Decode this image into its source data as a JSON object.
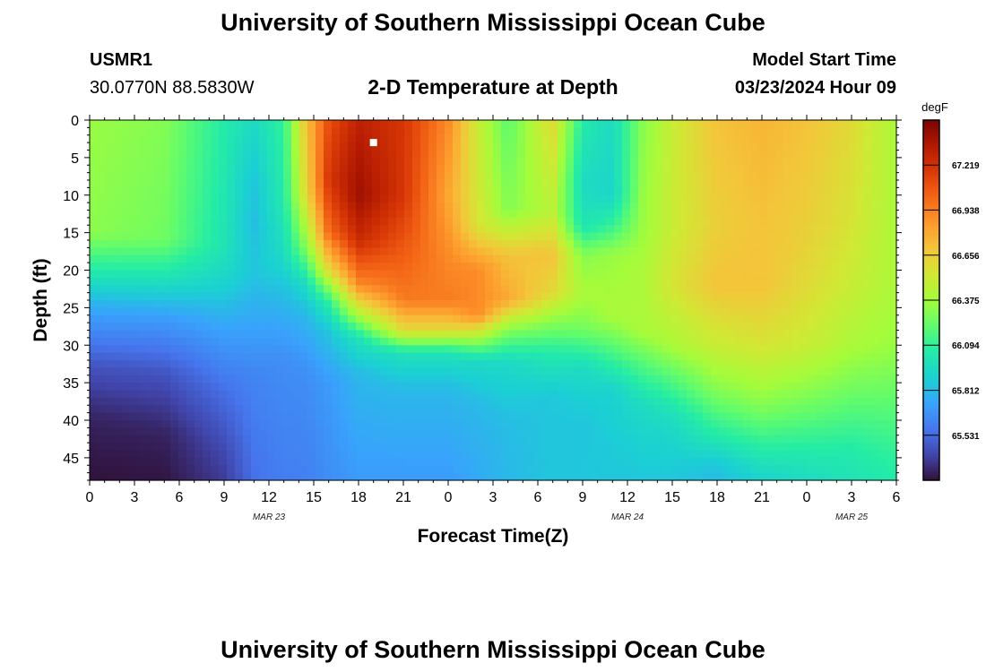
{
  "page": {
    "title": "University of Southern Mississippi Ocean Cube",
    "footer_title": "University of Southern Mississippi Ocean Cube"
  },
  "station": {
    "id": "USMR1",
    "coords": "30.0770N  88.5830W"
  },
  "model": {
    "label": "Model Start Time",
    "time": "03/23/2024 Hour 09"
  },
  "chart_data": {
    "type": "heatmap",
    "title": "2-D Temperature at Depth",
    "xlabel": "Forecast Time(Z)",
    "ylabel": "Depth (ft)",
    "xlim": [
      0,
      54
    ],
    "ylim": [
      48,
      0
    ],
    "x_ticks": [
      {
        "h": 0,
        "label": "0"
      },
      {
        "h": 3,
        "label": "3"
      },
      {
        "h": 6,
        "label": "6"
      },
      {
        "h": 9,
        "label": "9"
      },
      {
        "h": 12,
        "label": "12"
      },
      {
        "h": 15,
        "label": "15"
      },
      {
        "h": 18,
        "label": "18"
      },
      {
        "h": 21,
        "label": "21"
      },
      {
        "h": 24,
        "label": "0"
      },
      {
        "h": 27,
        "label": "3"
      },
      {
        "h": 30,
        "label": "6"
      },
      {
        "h": 33,
        "label": "9"
      },
      {
        "h": 36,
        "label": "12"
      },
      {
        "h": 39,
        "label": "15"
      },
      {
        "h": 42,
        "label": "18"
      },
      {
        "h": 45,
        "label": "21"
      },
      {
        "h": 48,
        "label": "0"
      },
      {
        "h": 51,
        "label": "3"
      },
      {
        "h": 54,
        "label": "6"
      }
    ],
    "date_labels": [
      {
        "h": 12,
        "label": "MAR 23"
      },
      {
        "h": 36,
        "label": "MAR 24"
      },
      {
        "h": 51,
        "label": "MAR 25"
      }
    ],
    "y_ticks": [
      0,
      5,
      10,
      15,
      20,
      25,
      30,
      35,
      40,
      45
    ],
    "colorbar": {
      "unit": "degF",
      "min": 65.25,
      "max": 67.5,
      "ticks": [
        "67.219",
        "66.938",
        "66.656",
        "66.375",
        "66.094",
        "65.812",
        "65.531"
      ]
    },
    "columns": [
      {
        "h": 0,
        "v": [
          [
            0,
            66.35
          ],
          [
            15,
            66.32
          ],
          [
            20,
            66.05
          ],
          [
            25,
            65.75
          ],
          [
            33,
            65.45
          ],
          [
            40,
            65.3
          ],
          [
            48,
            65.25
          ]
        ]
      },
      {
        "h": 5,
        "v": [
          [
            0,
            66.3
          ],
          [
            16,
            66.25
          ],
          [
            21,
            66.0
          ],
          [
            26,
            65.72
          ],
          [
            34,
            65.45
          ],
          [
            42,
            65.3
          ],
          [
            48,
            65.26
          ]
        ]
      },
      {
        "h": 9,
        "v": [
          [
            0,
            66.05
          ],
          [
            17,
            66.0
          ],
          [
            22,
            65.9
          ],
          [
            28,
            65.72
          ],
          [
            36,
            65.55
          ],
          [
            44,
            65.42
          ],
          [
            48,
            65.38
          ]
        ]
      },
      {
        "h": 11,
        "v": [
          [
            0,
            65.95
          ],
          [
            8,
            65.85
          ],
          [
            14,
            65.82
          ],
          [
            20,
            65.85
          ],
          [
            26,
            65.75
          ],
          [
            34,
            65.62
          ],
          [
            48,
            65.55
          ]
        ]
      },
      {
        "h": 13,
        "v": [
          [
            0,
            66.1
          ],
          [
            10,
            66.05
          ],
          [
            18,
            65.95
          ],
          [
            24,
            65.8
          ],
          [
            32,
            65.65
          ],
          [
            48,
            65.6
          ]
        ]
      },
      {
        "h": 14.5,
        "v": [
          [
            0,
            66.7
          ],
          [
            10,
            66.6
          ],
          [
            17,
            66.3
          ],
          [
            22,
            65.95
          ],
          [
            26,
            65.8
          ],
          [
            34,
            65.65
          ],
          [
            48,
            65.6
          ]
        ]
      },
      {
        "h": 16,
        "v": [
          [
            0,
            67.1
          ],
          [
            8,
            67.2
          ],
          [
            15,
            67.0
          ],
          [
            20,
            66.6
          ],
          [
            24,
            66.1
          ],
          [
            28,
            65.85
          ],
          [
            35,
            65.7
          ],
          [
            48,
            65.65
          ]
        ]
      },
      {
        "h": 18,
        "v": [
          [
            0,
            67.3
          ],
          [
            10,
            67.4
          ],
          [
            16,
            67.25
          ],
          [
            22,
            66.9
          ],
          [
            26,
            66.4
          ],
          [
            29,
            66.0
          ],
          [
            34,
            65.8
          ],
          [
            48,
            65.7
          ]
        ]
      },
      {
        "h": 21,
        "v": [
          [
            0,
            67.2
          ],
          [
            10,
            67.2
          ],
          [
            18,
            67.05
          ],
          [
            24,
            66.95
          ],
          [
            28,
            66.6
          ],
          [
            31,
            66.0
          ],
          [
            36,
            65.8
          ],
          [
            48,
            65.7
          ]
        ]
      },
      {
        "h": 24,
        "v": [
          [
            0,
            66.9
          ],
          [
            10,
            66.8
          ],
          [
            18,
            66.9
          ],
          [
            24,
            66.95
          ],
          [
            28,
            66.6
          ],
          [
            31,
            66.0
          ],
          [
            36,
            65.8
          ],
          [
            48,
            65.7
          ]
        ]
      },
      {
        "h": 26,
        "v": [
          [
            0,
            66.5
          ],
          [
            14,
            66.55
          ],
          [
            20,
            66.9
          ],
          [
            26,
            66.9
          ],
          [
            29,
            66.4
          ],
          [
            32,
            65.95
          ],
          [
            38,
            65.8
          ],
          [
            48,
            65.75
          ]
        ]
      },
      {
        "h": 28,
        "v": [
          [
            0,
            66.2
          ],
          [
            12,
            66.3
          ],
          [
            18,
            66.7
          ],
          [
            24,
            66.8
          ],
          [
            28,
            66.3
          ],
          [
            32,
            65.95
          ],
          [
            40,
            65.82
          ],
          [
            48,
            65.8
          ]
        ]
      },
      {
        "h": 31,
        "v": [
          [
            0,
            66.6
          ],
          [
            12,
            66.45
          ],
          [
            18,
            66.7
          ],
          [
            23,
            66.6
          ],
          [
            27,
            66.3
          ],
          [
            31,
            66.05
          ],
          [
            37,
            65.85
          ],
          [
            48,
            65.85
          ]
        ]
      },
      {
        "h": 33,
        "v": [
          [
            0,
            66.05
          ],
          [
            8,
            65.95
          ],
          [
            14,
            66.0
          ],
          [
            18,
            66.3
          ],
          [
            23,
            66.4
          ],
          [
            28,
            66.25
          ],
          [
            33,
            65.95
          ],
          [
            40,
            65.85
          ],
          [
            48,
            65.85
          ]
        ]
      },
      {
        "h": 35,
        "v": [
          [
            0,
            65.95
          ],
          [
            10,
            65.92
          ],
          [
            14,
            66.1
          ],
          [
            18,
            66.35
          ],
          [
            26,
            66.4
          ],
          [
            30,
            66.2
          ],
          [
            36,
            65.9
          ],
          [
            48,
            65.85
          ]
        ]
      },
      {
        "h": 37,
        "v": [
          [
            0,
            66.3
          ],
          [
            14,
            66.35
          ],
          [
            20,
            66.4
          ],
          [
            28,
            66.4
          ],
          [
            32,
            66.2
          ],
          [
            38,
            65.95
          ],
          [
            48,
            65.85
          ]
        ]
      },
      {
        "h": 39,
        "v": [
          [
            0,
            66.5
          ],
          [
            14,
            66.5
          ],
          [
            22,
            66.55
          ],
          [
            30,
            66.4
          ],
          [
            34,
            66.2
          ],
          [
            40,
            65.95
          ],
          [
            48,
            65.85
          ]
        ]
      },
      {
        "h": 42,
        "v": [
          [
            0,
            66.7
          ],
          [
            14,
            66.65
          ],
          [
            22,
            66.7
          ],
          [
            30,
            66.5
          ],
          [
            36,
            66.3
          ],
          [
            42,
            66.05
          ],
          [
            46,
            65.85
          ],
          [
            48,
            65.82
          ]
        ]
      },
      {
        "h": 45,
        "v": [
          [
            0,
            66.75
          ],
          [
            14,
            66.7
          ],
          [
            22,
            66.7
          ],
          [
            30,
            66.55
          ],
          [
            38,
            66.3
          ],
          [
            44,
            66.05
          ],
          [
            48,
            65.9
          ]
        ]
      },
      {
        "h": 48,
        "v": [
          [
            0,
            66.7
          ],
          [
            14,
            66.65
          ],
          [
            22,
            66.6
          ],
          [
            30,
            66.5
          ],
          [
            38,
            66.25
          ],
          [
            44,
            66.05
          ],
          [
            48,
            65.95
          ]
        ]
      },
      {
        "h": 51,
        "v": [
          [
            0,
            66.6
          ],
          [
            14,
            66.55
          ],
          [
            22,
            66.5
          ],
          [
            30,
            66.4
          ],
          [
            38,
            66.2
          ],
          [
            44,
            66.05
          ],
          [
            48,
            66.0
          ]
        ]
      },
      {
        "h": 54,
        "v": [
          [
            0,
            66.4
          ],
          [
            14,
            66.4
          ],
          [
            22,
            66.4
          ],
          [
            30,
            66.35
          ],
          [
            38,
            66.2
          ],
          [
            44,
            66.1
          ],
          [
            48,
            66.05
          ]
        ]
      }
    ],
    "marker": {
      "h": 19,
      "depth": 3
    }
  }
}
